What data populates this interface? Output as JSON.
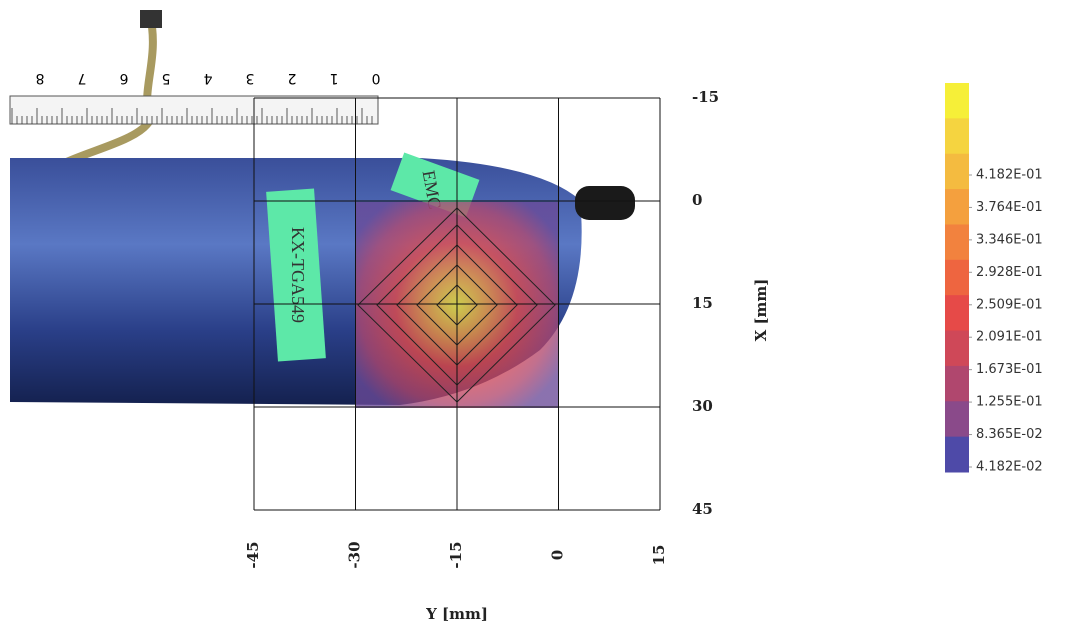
{
  "chart_data": {
    "type": "heatmap",
    "x_label": "Y [mm]",
    "y_label": "X [mm]",
    "xlim": [
      -45,
      15
    ],
    "xticks": [
      -45,
      -30,
      -15,
      0,
      15
    ],
    "ylim": [
      -15,
      45
    ],
    "yticks": [
      -15,
      0,
      15,
      30,
      45
    ],
    "y_inverted": true,
    "grid": true,
    "colorbar": {
      "colors": [
        "#f6ef38",
        "#f5d440",
        "#f4bb40",
        "#f4a03e",
        "#f2823e",
        "#ee6540",
        "#e64a48",
        "#cf4858",
        "#b0476e",
        "#8a4a8a",
        "#4e4aa8"
      ],
      "ticks": [
        {
          "value": 0.4182,
          "label": "4.182E-01"
        },
        {
          "value": 0.3764,
          "label": "3.764E-01"
        },
        {
          "value": 0.3346,
          "label": "3.346E-01"
        },
        {
          "value": 0.2928,
          "label": "2.928E-01"
        },
        {
          "value": 0.2509,
          "label": "2.509E-01"
        },
        {
          "value": 0.2091,
          "label": "2.091E-01"
        },
        {
          "value": 0.1673,
          "label": "1.673E-01"
        },
        {
          "value": 0.1255,
          "label": "1.255E-01"
        },
        {
          "value": 0.08365,
          "label": "8.365E-02"
        },
        {
          "value": 0.04182,
          "label": "4.182E-02"
        }
      ]
    }
  },
  "photo": {
    "ruler_labels": [
      "8",
      "7",
      "6",
      "5",
      "4",
      "3",
      "2",
      "1",
      "0"
    ],
    "labels": [
      "KX-TGA549",
      "EMC"
    ]
  }
}
